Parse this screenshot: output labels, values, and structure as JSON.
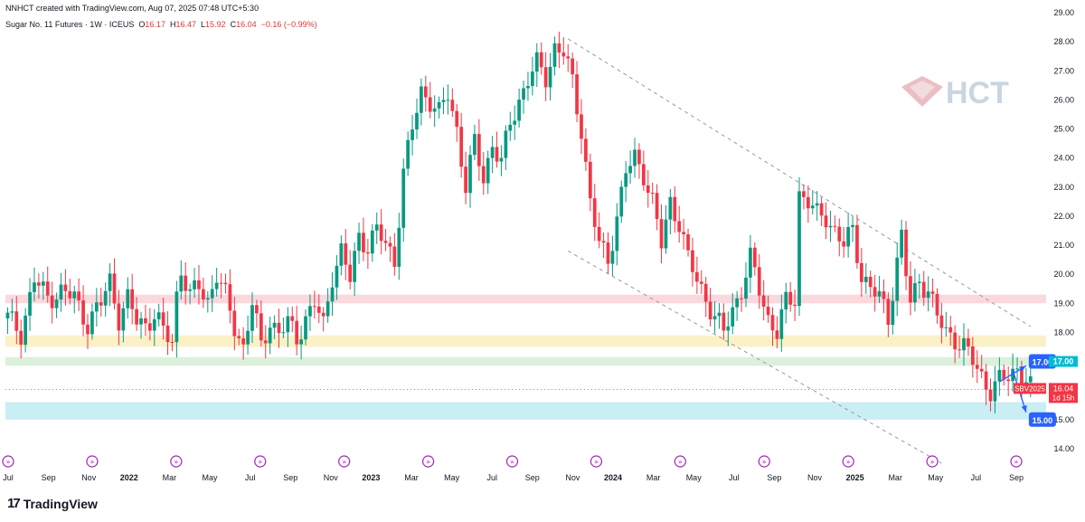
{
  "header": {
    "credit": "NNHCT created with TradingView.com, Aug 07, 2025 07:48 UTC+5:30",
    "symbol": "Sugar No. 11 Futures · 1W · ICEUS",
    "open_label": "O",
    "open": "16.17",
    "high_label": "H",
    "high": "16.47",
    "low_label": "L",
    "low": "15.92",
    "close_label": "C",
    "close": "16.04",
    "change": "−0.16 (−0.99%)"
  },
  "watermark": {
    "text": "HCT"
  },
  "branding": {
    "name": "TradingView",
    "mark": "17"
  },
  "colors": {
    "up": "#089981",
    "down": "#f23645",
    "accent": "#2962ff",
    "teal": "#00bcd4"
  },
  "chart_data": {
    "type": "candlestick",
    "title": "Sugar No. 11 Futures · 1W · ICEUS",
    "ylim": [
      13.5,
      29.0
    ],
    "yticks": [
      "29.00",
      "28.00",
      "27.00",
      "26.00",
      "25.00",
      "24.00",
      "23.00",
      "22.00",
      "21.00",
      "20.00",
      "19.00",
      "18.00",
      "17.00",
      "16.00",
      "15.00",
      "14.00"
    ],
    "xlabels": [
      "Jul",
      "Sep",
      "Nov",
      "2022",
      "Mar",
      "May",
      "Jul",
      "Sep",
      "Nov",
      "2023",
      "Mar",
      "May",
      "Jul",
      "Sep",
      "Nov",
      "2024",
      "Mar",
      "May",
      "Jul",
      "Sep",
      "Nov",
      "2025",
      "Mar",
      "May",
      "Jul",
      "Sep"
    ],
    "bold_years": [
      "2022",
      "2023",
      "2024",
      "2025"
    ],
    "close_path": [
      [
        0,
        18.5
      ],
      [
        3,
        18.0
      ],
      [
        6,
        19.8
      ],
      [
        9,
        19.2
      ],
      [
        12,
        19.4
      ],
      [
        15,
        19.2
      ],
      [
        18,
        18.3
      ],
      [
        21,
        19.0
      ],
      [
        23,
        19.8
      ],
      [
        25,
        18.5
      ],
      [
        27,
        19.1
      ],
      [
        29,
        18.4
      ],
      [
        31,
        18.3
      ],
      [
        33,
        18.6
      ],
      [
        35,
        18.0
      ],
      [
        37,
        17.7
      ],
      [
        38,
        19.3
      ],
      [
        39,
        20.2
      ],
      [
        41,
        19.2
      ],
      [
        43,
        19.6
      ],
      [
        45,
        19.1
      ],
      [
        47,
        20.0
      ],
      [
        49,
        19.2
      ],
      [
        51,
        18.2
      ],
      [
        53,
        17.5
      ],
      [
        55,
        19.0
      ],
      [
        57,
        17.5
      ],
      [
        59,
        18.4
      ],
      [
        61,
        18.0
      ],
      [
        63,
        18.3
      ],
      [
        65,
        17.8
      ],
      [
        67,
        18.5
      ],
      [
        69,
        19.0
      ],
      [
        71,
        18.2
      ],
      [
        73,
        20.0
      ],
      [
        75,
        20.8
      ],
      [
        77,
        19.8
      ],
      [
        79,
        21.3
      ],
      [
        81,
        21.0
      ],
      [
        83,
        21.5
      ],
      [
        85,
        21.0
      ],
      [
        87,
        20.5
      ],
      [
        89,
        23.5
      ],
      [
        91,
        25.0
      ],
      [
        93,
        26.3
      ],
      [
        95,
        26.0
      ],
      [
        97,
        25.5
      ],
      [
        99,
        26.2
      ],
      [
        101,
        25.0
      ],
      [
        103,
        23.0
      ],
      [
        105,
        24.5
      ],
      [
        107,
        23.3
      ],
      [
        109,
        24.5
      ],
      [
        111,
        23.8
      ],
      [
        113,
        25.2
      ],
      [
        115,
        26.0
      ],
      [
        117,
        26.7
      ],
      [
        119,
        27.2
      ],
      [
        121,
        26.8
      ],
      [
        123,
        27.8
      ],
      [
        125,
        27.6
      ],
      [
        127,
        26.6
      ],
      [
        129,
        25.0
      ],
      [
        131,
        22.5
      ],
      [
        133,
        21.0
      ],
      [
        135,
        20.5
      ],
      [
        137,
        22.0
      ],
      [
        139,
        23.5
      ],
      [
        141,
        24.0
      ],
      [
        143,
        23.5
      ],
      [
        145,
        22.5
      ],
      [
        147,
        21.0
      ],
      [
        149,
        22.5
      ],
      [
        151,
        21.8
      ],
      [
        153,
        20.5
      ],
      [
        155,
        19.8
      ],
      [
        157,
        19.2
      ],
      [
        159,
        18.5
      ],
      [
        161,
        18.0
      ],
      [
        163,
        18.8
      ],
      [
        165,
        19.5
      ],
      [
        167,
        20.5
      ],
      [
        169,
        19.5
      ],
      [
        171,
        18.5
      ],
      [
        173,
        18.0
      ],
      [
        175,
        19.0
      ],
      [
        177,
        19.2
      ],
      [
        178,
        22.8
      ],
      [
        180,
        22.5
      ],
      [
        182,
        22.0
      ],
      [
        184,
        22.0
      ],
      [
        186,
        21.5
      ],
      [
        188,
        21.0
      ],
      [
        190,
        21.5
      ],
      [
        192,
        20.0
      ],
      [
        194,
        19.5
      ],
      [
        196,
        19.2
      ],
      [
        198,
        18.5
      ],
      [
        200,
        20.5
      ],
      [
        201,
        21.3
      ],
      [
        202,
        20.0
      ],
      [
        203,
        19.0
      ],
      [
        205,
        19.8
      ],
      [
        207,
        19.5
      ],
      [
        209,
        18.5
      ],
      [
        211,
        18.0
      ],
      [
        213,
        17.8
      ],
      [
        215,
        17.5
      ],
      [
        217,
        17.0
      ],
      [
        219,
        16.5
      ],
      [
        221,
        16.0
      ],
      [
        223,
        16.3
      ],
      [
        225,
        16.5
      ],
      [
        227,
        16.8
      ],
      [
        229,
        16.3
      ],
      [
        230,
        16.04
      ]
    ],
    "zones": [
      {
        "name": "pink-zone",
        "from": 19.0,
        "to": 19.3,
        "color": "#f9d9de"
      },
      {
        "name": "yellow-zone",
        "from": 17.5,
        "to": 17.9,
        "color": "#fbf1c8"
      },
      {
        "name": "green-zone",
        "from": 16.85,
        "to": 17.15,
        "color": "#dcf0dc"
      },
      {
        "name": "cyan-zone",
        "from": 15.0,
        "to": 15.6,
        "color": "#c9eef3"
      }
    ],
    "dashed_price": 16.04,
    "channel": [
      {
        "name": "channel-upper",
        "from": [
          126,
          28.1
        ],
        "to": [
          230,
          18.2
        ]
      },
      {
        "name": "channel-lower",
        "from": [
          126,
          20.8
        ],
        "to": [
          210,
          13.5
        ]
      }
    ],
    "targets": [
      {
        "label": "17.00",
        "price": 17.0,
        "from": [
          223,
          16.3
        ],
        "to": [
          229,
          16.85
        ]
      },
      {
        "label": "15.00",
        "price": 15.0,
        "from": [
          226,
          16.7
        ],
        "to": [
          229,
          15.25
        ]
      }
    ],
    "axis_tags": [
      {
        "label": "17.00",
        "price": 17.0,
        "color": "#00bcd4"
      },
      {
        "label": "SBV2025",
        "value": "16.04",
        "sub": "1d 15h",
        "price": 16.04,
        "color": "#f23645"
      }
    ]
  }
}
